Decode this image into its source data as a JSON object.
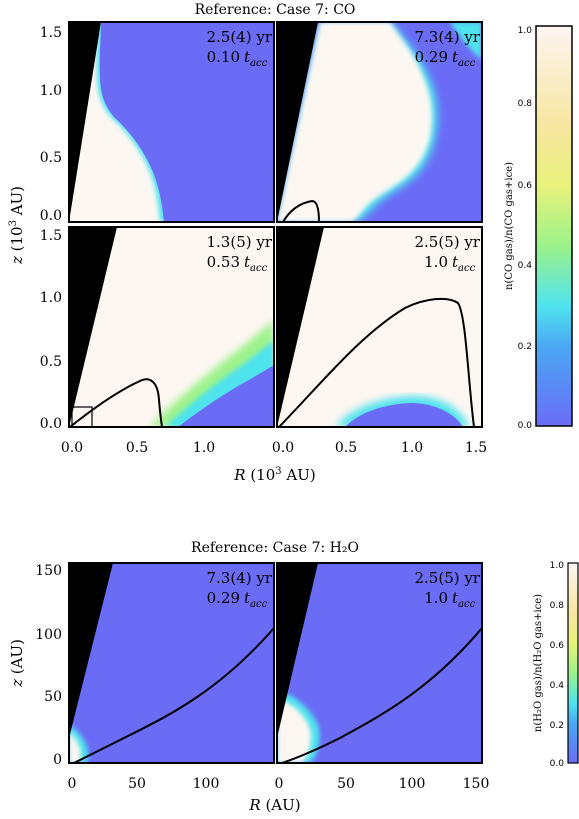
{
  "chart_data": [
    {
      "type": "heatmap",
      "title": "Reference: Case 7: CO",
      "xlabel": "R (10³ AU)",
      "ylabel": "z (10³ AU)",
      "xlim": [
        0,
        1.5
      ],
      "ylim": [
        0,
        1.5
      ],
      "xticks": [
        "0.0",
        "0.5",
        "1.0",
        "1.5"
      ],
      "yticks": [
        "0.0",
        "0.5",
        "1.0",
        "1.5"
      ],
      "colorbar": {
        "label": "n(CO gas)/n(CO gas+ice)",
        "range": [
          0,
          1
        ],
        "ticks": [
          "0.0",
          "0.2",
          "0.4",
          "0.6",
          "0.8",
          "1.0"
        ]
      },
      "panels": [
        {
          "time": "2.5(4) yr",
          "tacc": "0.10"
        },
        {
          "time": "7.3(4) yr",
          "tacc": "0.29"
        },
        {
          "time": "1.3(5) yr",
          "tacc": "0.53"
        },
        {
          "time": "2.5(5) yr",
          "tacc": "1.0"
        }
      ]
    },
    {
      "type": "heatmap",
      "title": "Reference: Case 7: H₂O",
      "xlabel": "R (AU)",
      "ylabel": "z (AU)",
      "xlim": [
        0,
        150
      ],
      "ylim": [
        0,
        150
      ],
      "xticks": [
        "0",
        "50",
        "100",
        "150"
      ],
      "yticks": [
        "0",
        "50",
        "100",
        "150"
      ],
      "colorbar": {
        "label": "n(H₂O gas)/n(H₂O gas+ice)",
        "range": [
          0,
          1
        ],
        "ticks": [
          "0.0",
          "0.2",
          "0.4",
          "0.6",
          "0.8",
          "1.0"
        ]
      },
      "panels": [
        {
          "time": "7.3(4) yr",
          "tacc": "0.29"
        },
        {
          "time": "2.5(5) yr",
          "tacc": "1.0"
        }
      ]
    }
  ],
  "units": {
    "tacc": "t",
    "tacc_sub": "acc"
  },
  "colors": {
    "blue": "#6a6cf6",
    "cyan": "#4fe3ee",
    "green": "#9cf28a",
    "yellow": "#f6f0b8",
    "cream": "#fdf7f2",
    "black": "#000000"
  }
}
